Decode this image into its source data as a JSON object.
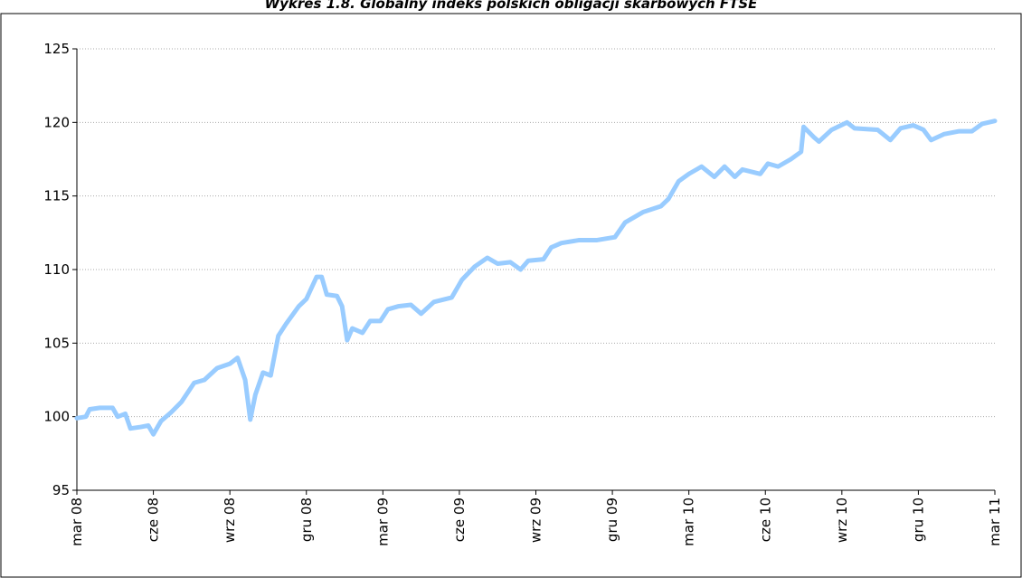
{
  "chart_data": {
    "type": "line",
    "title": "Wykres 1.8. Globalny indeks polskich obligacji skarbowych FTSE",
    "x": [
      0,
      0.35,
      0.5,
      0.9,
      1.4,
      1.6,
      1.9,
      2.1,
      2.5,
      2.8,
      3.0,
      3.3,
      3.7,
      4.1,
      4.6,
      5.0,
      5.5,
      6.0,
      6.3,
      6.6,
      6.8,
      7.0,
      7.3,
      7.6,
      7.9,
      8.2,
      8.7,
      9.0,
      9.4,
      9.6,
      9.8,
      10.2,
      10.4,
      10.6,
      10.8,
      11.2,
      11.5,
      11.9,
      12.2,
      12.6,
      13.1,
      13.5,
      14.0,
      14.7,
      15.1,
      15.6,
      16.1,
      16.5,
      17.0,
      17.4,
      17.7,
      18.3,
      18.6,
      19.0,
      19.7,
      20.4,
      21.1,
      21.5,
      21.8,
      22.2,
      22.9,
      23.2,
      23.6,
      24.0,
      24.5,
      25.0,
      25.4,
      25.8,
      26.1,
      26.8,
      27.1,
      27.5,
      28.0,
      28.4,
      28.5,
      28.9,
      29.1,
      29.6,
      30.2,
      30.5,
      31.4,
      31.9,
      32.3,
      32.8,
      33.2,
      33.5,
      34.0,
      34.6,
      35.1,
      35.5,
      36.0
    ],
    "series": [
      {
        "color": "#99ccff",
        "values": [
          99.9,
          100.0,
          100.5,
          100.6,
          100.6,
          100.0,
          100.2,
          99.2,
          99.3,
          99.4,
          98.8,
          99.7,
          100.3,
          101.0,
          102.3,
          102.5,
          103.3,
          103.6,
          104.0,
          102.5,
          99.8,
          101.5,
          103.0,
          102.8,
          105.5,
          106.3,
          107.5,
          108.0,
          109.5,
          109.5,
          108.3,
          108.2,
          107.5,
          105.2,
          106.0,
          105.7,
          106.5,
          106.5,
          107.3,
          107.5,
          107.6,
          107.0,
          107.8,
          108.1,
          109.3,
          110.2,
          110.8,
          110.4,
          110.5,
          110.0,
          110.6,
          110.7,
          111.5,
          111.8,
          112.0,
          112.0,
          112.2,
          113.2,
          113.5,
          113.9,
          114.3,
          114.8,
          116.0,
          116.5,
          117.0,
          116.3,
          117.0,
          116.3,
          116.8,
          116.5,
          117.2,
          117.0,
          117.5,
          118.0,
          119.7,
          119.0,
          118.7,
          119.5,
          120.0,
          119.6,
          119.5,
          118.8,
          119.6,
          119.8,
          119.5,
          118.8,
          119.2,
          119.4,
          119.4,
          119.9,
          120.1
        ]
      }
    ],
    "xlim": [
      0,
      36
    ],
    "xticks": [
      {
        "value": 0,
        "label": "mar 08"
      },
      {
        "value": 3,
        "label": "cze 08"
      },
      {
        "value": 6,
        "label": "wrz 08"
      },
      {
        "value": 9,
        "label": "gru 08"
      },
      {
        "value": 12,
        "label": "mar 09"
      },
      {
        "value": 15,
        "label": "cze 09"
      },
      {
        "value": 18,
        "label": "wrz 09"
      },
      {
        "value": 21,
        "label": "gru 09"
      },
      {
        "value": 24,
        "label": "mar 10"
      },
      {
        "value": 27,
        "label": "cze 10"
      },
      {
        "value": 30,
        "label": "wrz 10"
      },
      {
        "value": 33,
        "label": "gru 10"
      },
      {
        "value": 36,
        "label": "mar 11"
      }
    ],
    "ylim": [
      95,
      125
    ],
    "yticks": [
      95,
      100,
      105,
      110,
      115,
      120,
      125
    ],
    "grid": true
  }
}
